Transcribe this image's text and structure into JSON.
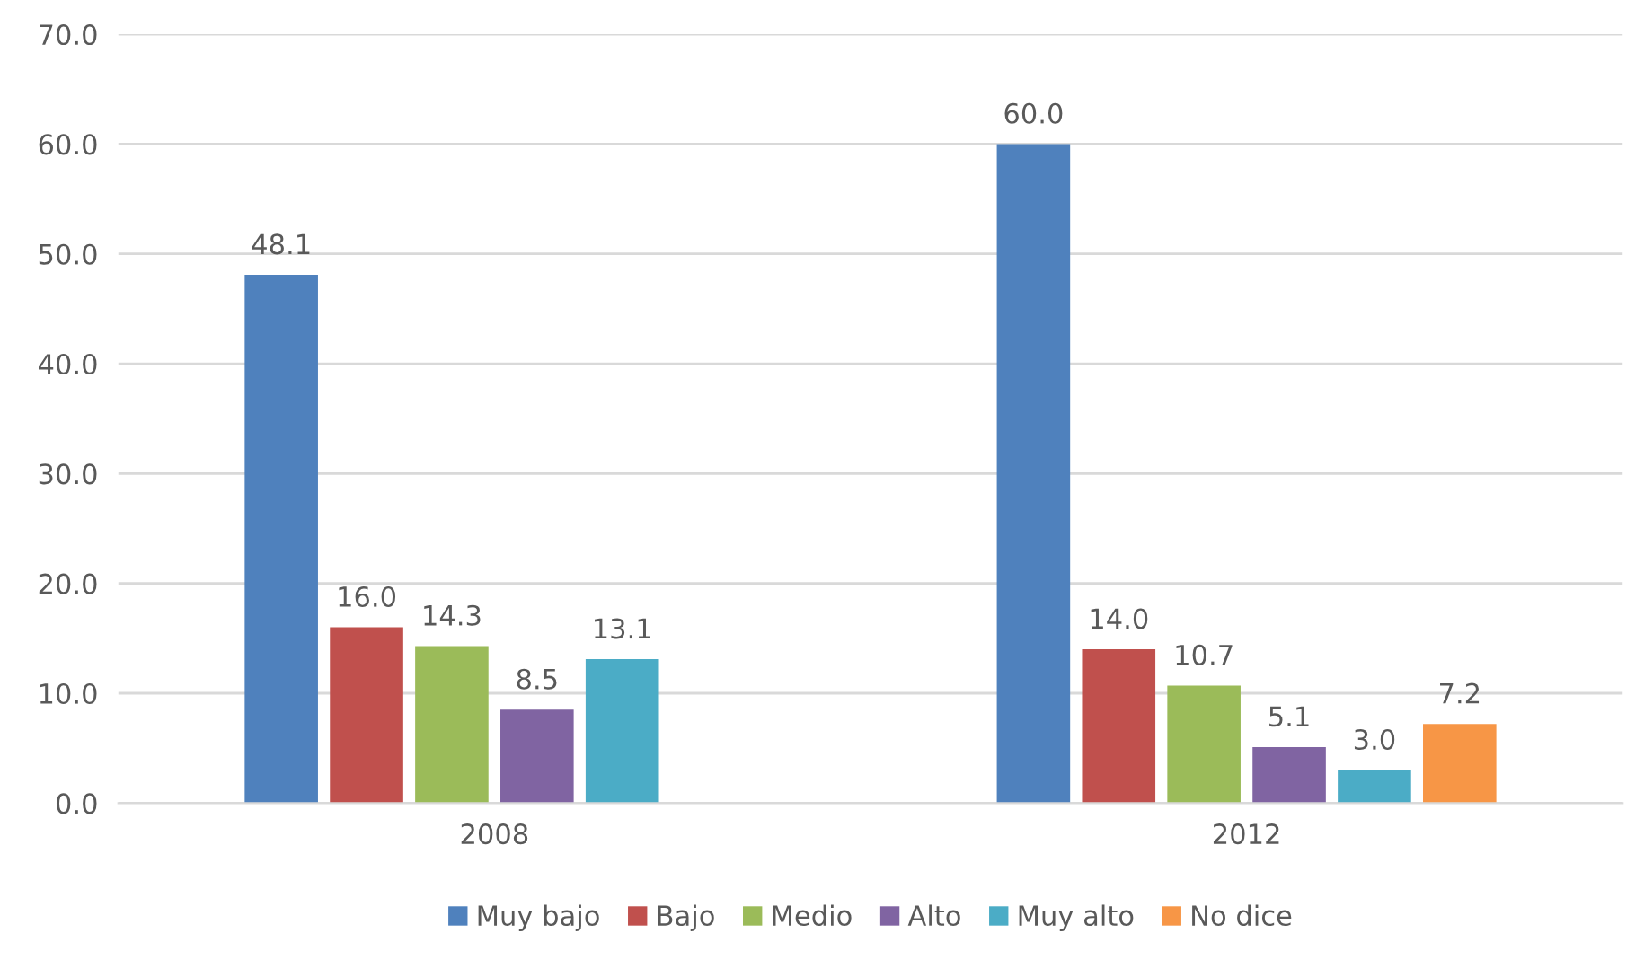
{
  "chart_data": {
    "type": "bar",
    "categories": [
      "2008",
      "2012"
    ],
    "series": [
      {
        "name": "Muy bajo",
        "color": "#4f81bd",
        "values": [
          48.1,
          60
        ],
        "value_labels": [
          "48.1",
          "60.0"
        ]
      },
      {
        "name": "Bajo",
        "color": "#c0504d",
        "values": [
          16,
          14
        ],
        "value_labels": [
          "16.0",
          "14.0"
        ]
      },
      {
        "name": "Medio",
        "color": "#9bbb59",
        "values": [
          14.3,
          10.7
        ],
        "value_labels": [
          "14.3",
          "10.7"
        ]
      },
      {
        "name": "Alto",
        "color": "#8064a2",
        "values": [
          8.5,
          5.1
        ],
        "value_labels": [
          "8.5",
          "5.1"
        ]
      },
      {
        "name": "Muy alto",
        "color": "#4bacc6",
        "values": [
          13.1,
          3
        ],
        "value_labels": [
          "13.1",
          "3.0"
        ]
      },
      {
        "name": "No dice",
        "color": "#f79646",
        "values": [
          null,
          7.2
        ],
        "value_labels": [
          null,
          "7.2"
        ]
      }
    ],
    "ylim": [
      0,
      70
    ],
    "yticks": [
      {
        "value": 0,
        "label": "0.0"
      },
      {
        "value": 10,
        "label": "10.0"
      },
      {
        "value": 20,
        "label": "20.0"
      },
      {
        "value": 30,
        "label": "30.0"
      },
      {
        "value": 40,
        "label": "40.0"
      },
      {
        "value": 50,
        "label": "50.0"
      },
      {
        "value": 60,
        "label": "60.0"
      },
      {
        "value": 70,
        "label": "70.0"
      }
    ],
    "grid": "y",
    "legend": "bottom"
  }
}
